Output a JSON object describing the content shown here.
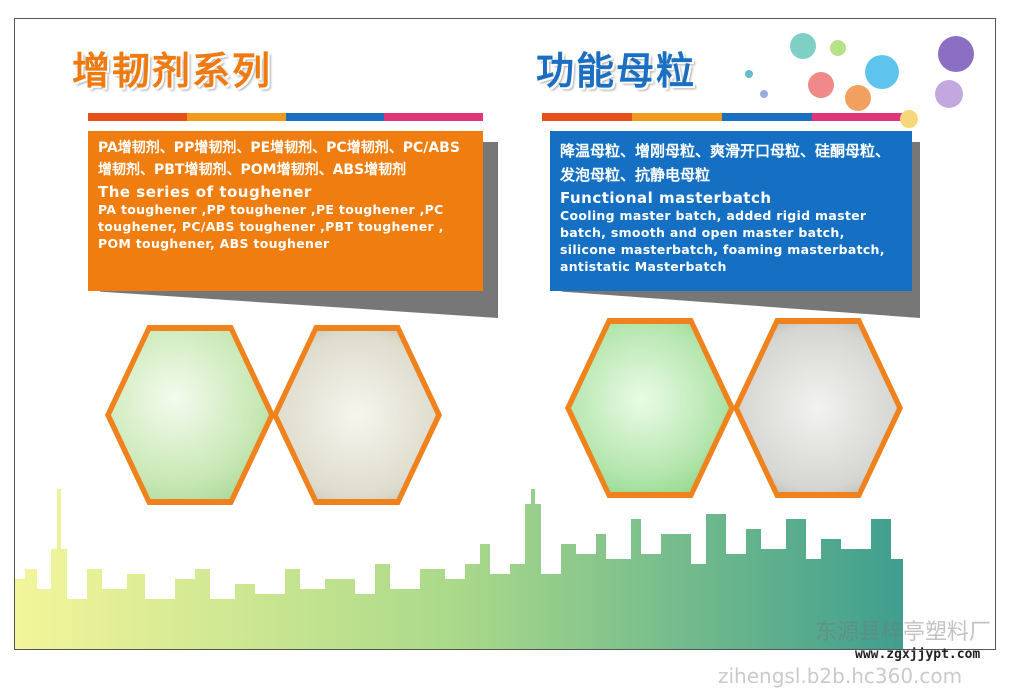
{
  "left": {
    "title": "增韧剂系列",
    "cn": "PA增韧剂、PP增韧剂、PE增韧剂、PC增韧剂、PC/ABS增韧剂、PBT增韧剂、POM增韧剂、ABS增韧剂",
    "en_heading": "The series of toughener",
    "en": "PA toughener ,PP toughener ,PE toughener ,PC toughener, PC/ABS toughener ,PBT toughener , POM toughener, ABS toughener",
    "color": "#ef7d0f"
  },
  "right": {
    "title": "功能母粒",
    "cn": "降温母粒、增刚母粒、爽滑开口母粒、硅酮母粒、发泡母粒、抗静电母粒",
    "en_heading": "Functional masterbatch",
    "en": "Cooling master batch, added rigid master batch, smooth and open master batch, silicone masterbatch, foaming masterbatch, antistatic Masterbatch",
    "color": "#1570c4"
  },
  "watermark": {
    "company": "东源县梓亭塑料厂",
    "url": "www.zgxjjypt.com",
    "site": "zihengsl.b2b.hc360.com"
  }
}
